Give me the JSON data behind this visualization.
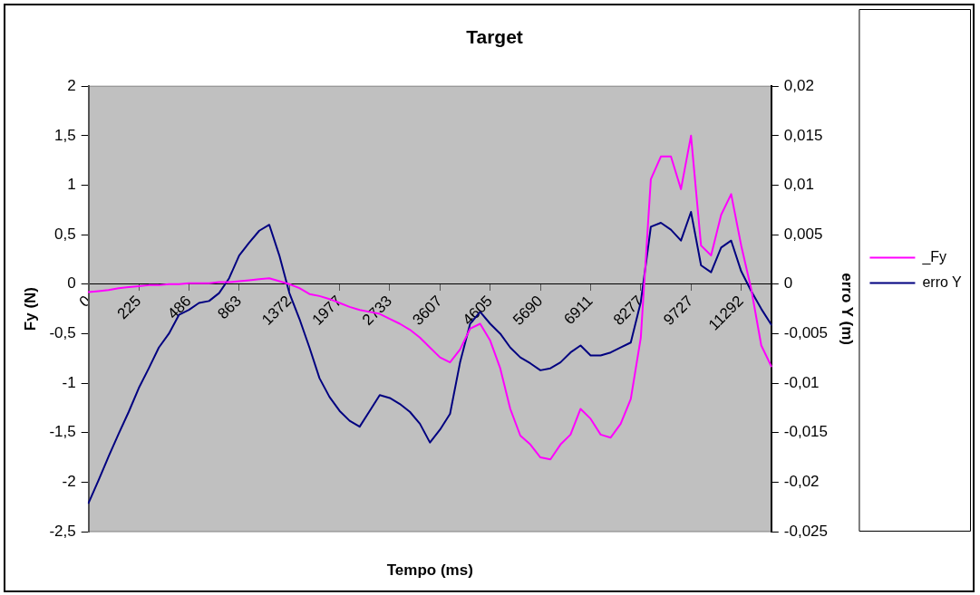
{
  "chart_data": {
    "type": "line",
    "title": "Target",
    "xlabel": "Tempo (ms)",
    "ylabel": "Fy (N)",
    "y2label": "erro Y (m)",
    "categories": [
      "0",
      null,
      null,
      null,
      null,
      "225",
      null,
      null,
      null,
      null,
      "486",
      null,
      null,
      null,
      null,
      "863",
      null,
      null,
      null,
      null,
      "1372",
      null,
      null,
      null,
      null,
      "1977",
      null,
      null,
      null,
      null,
      "2733",
      null,
      null,
      null,
      null,
      "3607",
      null,
      null,
      null,
      null,
      "4605",
      null,
      null,
      null,
      null,
      "5690",
      null,
      null,
      null,
      null,
      "6911",
      null,
      null,
      null,
      null,
      "8277",
      null,
      null,
      null,
      null,
      "9727",
      null,
      null,
      null,
      null,
      "11292",
      null,
      null,
      null
    ],
    "series": [
      {
        "name": "_Fy",
        "color": "#ff00ff",
        "values": [
          -0.08,
          -0.07,
          -0.06,
          -0.04,
          -0.03,
          -0.02,
          -0.01,
          -0.01,
          0,
          0,
          0.01,
          0.01,
          0.01,
          0.02,
          0.02,
          0.03,
          0.04,
          0.05,
          0.06,
          0.03,
          0,
          -0.04,
          -0.1,
          -0.12,
          -0.15,
          -0.19,
          -0.23,
          -0.26,
          -0.28,
          -0.3,
          -0.35,
          -0.4,
          -0.46,
          -0.54,
          -0.64,
          -0.74,
          -0.79,
          -0.66,
          -0.45,
          -0.4,
          -0.57,
          -0.85,
          -1.26,
          -1.53,
          -1.62,
          -1.75,
          -1.77,
          -1.62,
          -1.52,
          -1.26,
          -1.36,
          -1.52,
          -1.55,
          -1.41,
          -1.16,
          -0.54,
          1.06,
          1.29,
          1.29,
          0.96,
          1.5,
          0.39,
          0.29,
          0.7,
          0.91,
          0.39,
          -0.05,
          -0.62,
          -0.83
        ]
      },
      {
        "name": "erro Y",
        "color": "#000080",
        "axis": "y2",
        "values": [
          -0.0221,
          -0.0198,
          -0.0174,
          -0.0151,
          -0.0129,
          -0.0105,
          -0.0085,
          -0.0064,
          -0.005,
          -0.0031,
          -0.0026,
          -0.0019,
          -0.0017,
          -0.0009,
          0.0006,
          0.0029,
          0.0042,
          0.0054,
          0.006,
          0.0029,
          -0.0009,
          -0.0035,
          -0.0064,
          -0.0095,
          -0.0114,
          -0.0128,
          -0.0138,
          -0.0144,
          -0.0128,
          -0.0112,
          -0.0115,
          -0.0121,
          -0.0129,
          -0.0141,
          -0.016,
          -0.0147,
          -0.0131,
          -0.0079,
          -0.004,
          -0.0028,
          -0.004,
          -0.005,
          -0.0064,
          -0.0074,
          -0.008,
          -0.0087,
          -0.0085,
          -0.0079,
          -0.0069,
          -0.0062,
          -0.0072,
          -0.0072,
          -0.0069,
          -0.0064,
          -0.0059,
          -0.0018,
          0.0058,
          0.0062,
          0.0055,
          0.0044,
          0.0073,
          0.0019,
          0.0012,
          0.0037,
          0.0044,
          0.0013,
          -0.0007,
          -0.0025,
          -0.0041
        ]
      }
    ],
    "ylim": [
      -2.5,
      2
    ],
    "yticks": [
      {
        "value": -2.5,
        "label": "-2,5"
      },
      {
        "value": -2,
        "label": "-2"
      },
      {
        "value": -1.5,
        "label": "-1,5"
      },
      {
        "value": -1,
        "label": "-1"
      },
      {
        "value": -0.5,
        "label": "-0,5"
      },
      {
        "value": 0,
        "label": "0"
      },
      {
        "value": 0.5,
        "label": "0,5"
      },
      {
        "value": 1,
        "label": "1"
      },
      {
        "value": 1.5,
        "label": "1,5"
      },
      {
        "value": 2,
        "label": "2"
      }
    ],
    "y2lim": [
      -0.025,
      0.02
    ],
    "y2ticks": [
      {
        "value": -0.025,
        "label": "-0,025"
      },
      {
        "value": -0.02,
        "label": "-0,02"
      },
      {
        "value": -0.015,
        "label": "-0,015"
      },
      {
        "value": -0.01,
        "label": "-0,01"
      },
      {
        "value": -0.005,
        "label": "-0,005"
      },
      {
        "value": 0,
        "label": "0"
      },
      {
        "value": 0.005,
        "label": "0,005"
      },
      {
        "value": 0.01,
        "label": "0,01"
      },
      {
        "value": 0.015,
        "label": "0,015"
      },
      {
        "value": 0.02,
        "label": "0,02"
      }
    ],
    "grid": false,
    "legend": "right",
    "marker": "none",
    "line_style": "solid"
  }
}
